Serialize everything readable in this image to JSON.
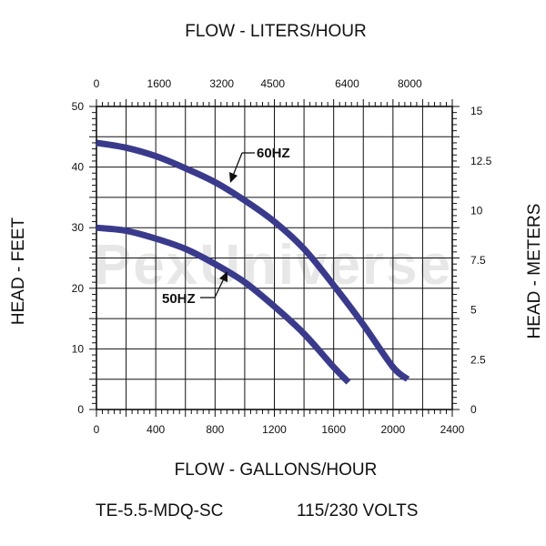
{
  "chart_data": {
    "type": "line",
    "title": "",
    "top_axis": {
      "label": "FLOW - LITERS/HOUR",
      "ticks": [
        "0",
        "1600",
        "3200",
        "4500",
        "6400",
        "8000"
      ]
    },
    "bottom_axis": {
      "label": "FLOW - GALLONS/HOUR",
      "ticks": [
        "0",
        "400",
        "800",
        "1200",
        "1600",
        "2000",
        "2400"
      ],
      "xlim": [
        0,
        2400
      ]
    },
    "left_axis": {
      "label": "HEAD - FEET",
      "ticks": [
        "0",
        "10",
        "20",
        "30",
        "40",
        "50"
      ],
      "ylim": [
        0,
        50
      ]
    },
    "right_axis": {
      "label": "HEAD - METERS",
      "ticks": [
        "0",
        "2.5",
        "5",
        "7.5",
        "10",
        "12.5",
        "15"
      ]
    },
    "grid": true,
    "series": [
      {
        "name": "60HZ",
        "color": "#3a3a8c",
        "x": [
          0,
          200,
          400,
          600,
          800,
          1000,
          1200,
          1400,
          1600,
          1800,
          2000,
          2100
        ],
        "y": [
          44,
          43.2,
          41.8,
          39.8,
          37.5,
          34.5,
          31,
          26.5,
          20.5,
          14,
          7,
          5
        ]
      },
      {
        "name": "50HZ",
        "color": "#3a3a8c",
        "x": [
          0,
          200,
          400,
          600,
          800,
          1000,
          1200,
          1400,
          1600,
          1700
        ],
        "y": [
          30,
          29.5,
          28.2,
          26.5,
          24,
          21,
          17,
          12.5,
          7,
          4.5
        ]
      }
    ]
  },
  "footer": {
    "model": "TE-5.5-MDQ-SC",
    "voltage": "115/230 VOLTS"
  },
  "watermark": "PexUniverse"
}
